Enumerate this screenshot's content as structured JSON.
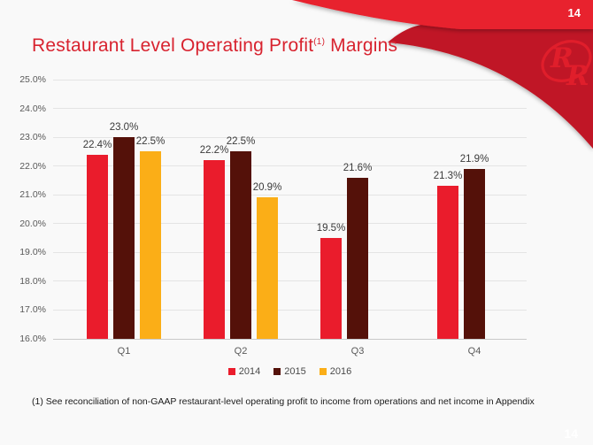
{
  "page": {
    "slide_number": "14",
    "slide_number_watermark": "14",
    "title": {
      "main": "Restaurant Level Operating Profit",
      "superscript": "(1)",
      "suffix": " Margins"
    },
    "footnote": "(1)   See reconciliation of non-GAAP restaurant-level operating profit to income from operations and net income in Appendix"
  },
  "logo": {
    "name": "red-robin-rr-logo",
    "letters": [
      "R",
      "R"
    ]
  },
  "colors": {
    "header_band_red": "#E8202E",
    "corner_dark_red": "#C01925",
    "logo_red": "#E01E2B",
    "title_red": "#D8232F",
    "background": "#F9F9F9",
    "gridline": "#E4E4E4",
    "axis_text": "#595959",
    "data_label_text": "#3A3A3A"
  },
  "chart_data": {
    "type": "bar",
    "title": "",
    "xlabel": "",
    "ylabel": "",
    "categories": [
      "Q1",
      "Q2",
      "Q3",
      "Q4"
    ],
    "series": [
      {
        "name": "2014",
        "color": "#EA1C2C",
        "values": [
          22.4,
          22.2,
          19.5,
          21.3
        ]
      },
      {
        "name": "2015",
        "color": "#541109",
        "values": [
          23.0,
          22.5,
          21.6,
          21.9
        ]
      },
      {
        "name": "2016",
        "color": "#FBAE17",
        "values": [
          22.5,
          20.9,
          null,
          null
        ]
      }
    ],
    "ylim": [
      16.0,
      25.0
    ],
    "ytick_step": 1.0,
    "ytick_labels": [
      "16.0%",
      "17.0%",
      "18.0%",
      "19.0%",
      "20.0%",
      "21.0%",
      "22.0%",
      "23.0%",
      "24.0%",
      "25.0%"
    ],
    "data_labels": true,
    "grid": true,
    "legend_position": "bottom"
  }
}
